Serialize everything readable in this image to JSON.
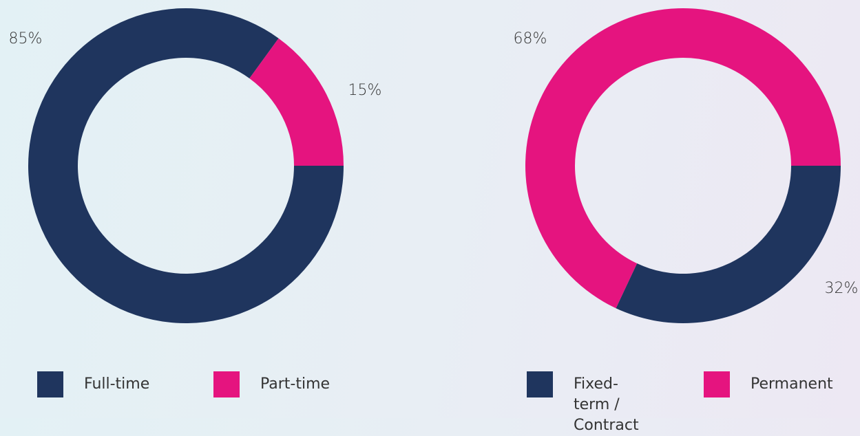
{
  "chart_data": [
    {
      "type": "donut",
      "categories": [
        "Full-time",
        "Part-time"
      ],
      "values": [
        85,
        15
      ],
      "value_labels": [
        "85%",
        "15%"
      ],
      "colors": [
        "#1f355e",
        "#e5147f"
      ],
      "legend": "bottom"
    },
    {
      "type": "donut",
      "categories": [
        "Fixed-term / Contract",
        "Permanent"
      ],
      "values": [
        32,
        68
      ],
      "value_labels": [
        "32%",
        "68%"
      ],
      "colors": [
        "#1f355e",
        "#e5147f"
      ],
      "legend": "bottom"
    }
  ]
}
